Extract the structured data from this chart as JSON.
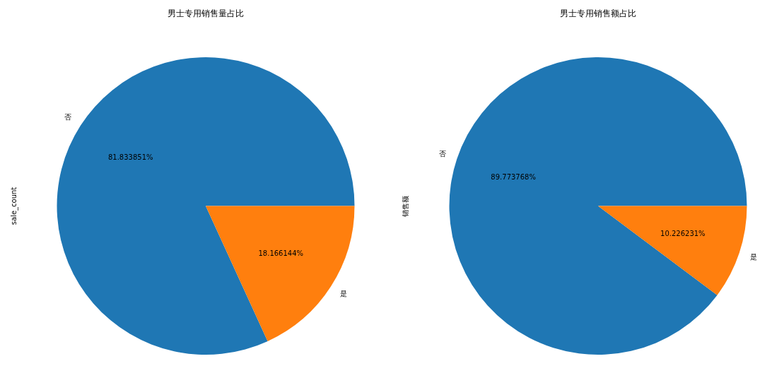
{
  "chart_data": [
    {
      "type": "pie",
      "title": "男士专用销售量占比",
      "ylabel": "sale_count",
      "categories": [
        "否",
        "是"
      ],
      "values": [
        81.833851,
        18.166144
      ],
      "value_labels": [
        "81.833851%",
        "18.166144%"
      ],
      "colors": [
        "#1f77b4",
        "#ff7f0e"
      ],
      "legend": false
    },
    {
      "type": "pie",
      "title": "男士专用销售额占比",
      "ylabel": "销售额",
      "categories": [
        "否",
        "是"
      ],
      "values": [
        89.773768,
        10.226231
      ],
      "value_labels": [
        "89.773768%",
        "10.226231%"
      ],
      "colors": [
        "#1f77b4",
        "#ff7f0e"
      ],
      "legend": false
    }
  ]
}
